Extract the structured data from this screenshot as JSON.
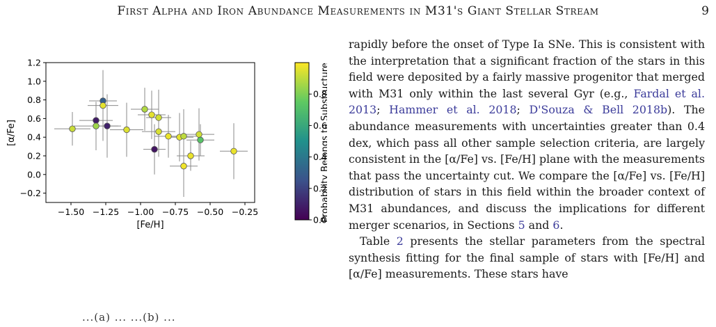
{
  "header": {
    "running_title": "First Alpha and Iron Abundance Measurements in M31's Giant Stellar Stream",
    "page_number": "9"
  },
  "figure": {
    "ylabel": "[α/Fe]",
    "xlabel": "[Fe/H]",
    "colorbar_label": "Probability Belongs to Substructure",
    "colorbar_ticks": [
      "0.0",
      "0.2",
      "0.4",
      "0.6",
      "0.8"
    ],
    "caption_fragment": "...(a) ... ...(b) ..."
  },
  "chart_data": {
    "type": "scatter",
    "title": "",
    "xlabel": "[Fe/H]",
    "ylabel": "[α/Fe]",
    "xlim": [
      -1.68,
      -0.18
    ],
    "ylim": [
      -0.3,
      1.2
    ],
    "xticks": [
      -1.5,
      -1.25,
      -1.0,
      -0.75,
      -0.5,
      -0.25
    ],
    "xtick_labels": [
      "−1.50",
      "−1.25",
      "−1.00",
      "−0.75",
      "−0.50",
      "−0.25"
    ],
    "yticks": [
      -0.2,
      0.0,
      0.2,
      0.4,
      0.6,
      0.8,
      1.0,
      1.2
    ],
    "ytick_labels": [
      "−0.2",
      "0.0",
      "0.2",
      "0.4",
      "0.6",
      "0.8",
      "1.0",
      "1.2"
    ],
    "colorbar": {
      "label": "Probability Belongs to Substructure",
      "range": [
        0,
        1
      ],
      "ticks": [
        0.0,
        0.2,
        0.4,
        0.6,
        0.8
      ],
      "colormap": "viridis"
    },
    "grid": false,
    "points": [
      {
        "feh": -1.49,
        "afe": 0.49,
        "xerr": 0.13,
        "yerr": 0.18,
        "prob": 0.92
      },
      {
        "feh": -1.27,
        "afe": 0.79,
        "xerr": 0.1,
        "yerr": 0.22,
        "prob": 0.3
      },
      {
        "feh": -1.27,
        "afe": 0.74,
        "xerr": 0.11,
        "yerr": 0.38,
        "prob": 0.96
      },
      {
        "feh": -1.32,
        "afe": 0.58,
        "xerr": 0.12,
        "yerr": 0.19,
        "prob": 0.08
      },
      {
        "feh": -1.32,
        "afe": 0.52,
        "xerr": 0.16,
        "yerr": 0.26,
        "prob": 0.85
      },
      {
        "feh": -1.24,
        "afe": 0.52,
        "xerr": 0.1,
        "yerr": 0.34,
        "prob": 0.1
      },
      {
        "feh": -1.1,
        "afe": 0.48,
        "xerr": 0.12,
        "yerr": 0.29,
        "prob": 0.95
      },
      {
        "feh": -0.97,
        "afe": 0.7,
        "xerr": 0.1,
        "yerr": 0.23,
        "prob": 0.88
      },
      {
        "feh": -0.92,
        "afe": 0.64,
        "xerr": 0.1,
        "yerr": 0.26,
        "prob": 0.96
      },
      {
        "feh": -0.87,
        "afe": 0.61,
        "xerr": 0.09,
        "yerr": 0.3,
        "prob": 0.93
      },
      {
        "feh": -0.87,
        "afe": 0.46,
        "xerr": 0.12,
        "yerr": 0.27,
        "prob": 0.94
      },
      {
        "feh": -0.9,
        "afe": 0.27,
        "xerr": 0.08,
        "yerr": 0.27,
        "prob": 0.06
      },
      {
        "feh": -0.8,
        "afe": 0.41,
        "xerr": 0.1,
        "yerr": 0.23,
        "prob": 0.97
      },
      {
        "feh": -0.72,
        "afe": 0.4,
        "xerr": 0.1,
        "yerr": 0.26,
        "prob": 0.96
      },
      {
        "feh": -0.69,
        "afe": 0.41,
        "xerr": 0.09,
        "yerr": 0.29,
        "prob": 0.9
      },
      {
        "feh": -0.58,
        "afe": 0.43,
        "xerr": 0.11,
        "yerr": 0.28,
        "prob": 0.93
      },
      {
        "feh": -0.57,
        "afe": 0.37,
        "xerr": 0.1,
        "yerr": 0.17,
        "prob": 0.72
      },
      {
        "feh": -0.64,
        "afe": 0.2,
        "xerr": 0.1,
        "yerr": 0.16,
        "prob": 0.97
      },
      {
        "feh": -0.69,
        "afe": 0.09,
        "xerr": 0.1,
        "yerr": 0.33,
        "prob": 0.98
      },
      {
        "feh": -0.33,
        "afe": 0.25,
        "xerr": 0.1,
        "yerr": 0.3,
        "prob": 0.97
      }
    ]
  },
  "body": {
    "p1_a": "rapidly before the onset of Type Ia SNe. This is consistent with the interpretation that a significant fraction of the stars in this field were deposited by a fairly massive progenitor that merged with M31 only within the last several Gyr (e.g., ",
    "cite1": "Fardal et al. 2013",
    "sep1": "; ",
    "cite2": "Hammer et al. 2018",
    "sep2": "; ",
    "cite3": "D'Souza & Bell 2018b",
    "p1_b": "). The abundance measurements with uncertainties greater than 0.4 dex, which pass all other sample selection criteria, are largely consistent in the [α/Fe] vs. [Fe/H] plane with the measurements that pass the uncertainty cut. We compare the [α/Fe] vs. [Fe/H] distribution of stars in this field within the broader context of M31 abundances, and discuss the implications for different merger scenarios, in Sections ",
    "sec5": "5",
    "p1_c": " and ",
    "sec6": "6",
    "p1_d": ".",
    "p2_a": "Table ",
    "table_ref": "2",
    "p2_b": " presents the stellar parameters from the spectral synthesis fitting for the final sample of stars with [Fe/H] and [α/Fe] measurements. These stars have"
  }
}
